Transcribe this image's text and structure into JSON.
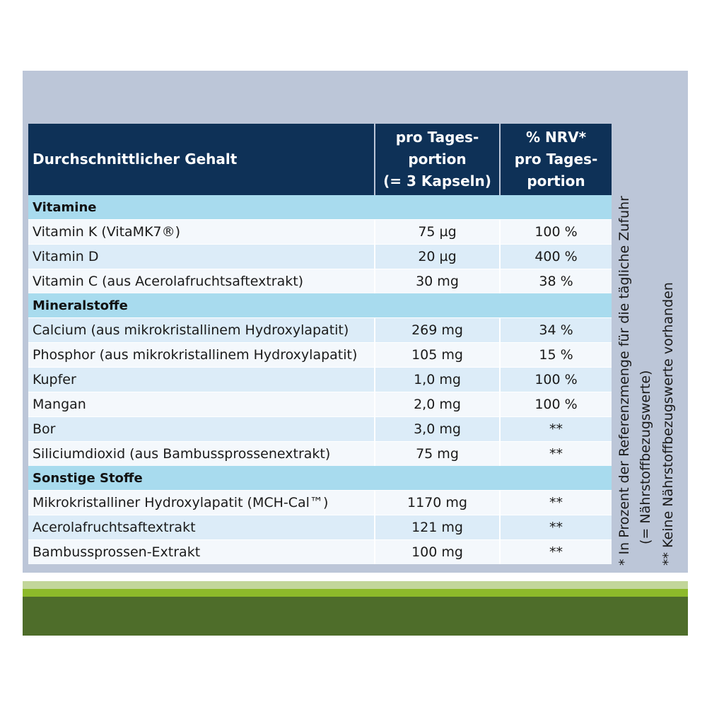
{
  "header": {
    "col1": "Durchschnittlicher Gehalt",
    "col2": [
      "pro Tages-",
      "portion",
      "(= 3 Kapseln)"
    ],
    "col3": [
      "% NRV*",
      "pro Tages-",
      "portion"
    ]
  },
  "sections": [
    {
      "title": "Vitamine",
      "rows": [
        {
          "name": "Vitamin K (VitaMK7®)",
          "amount": "75 µg",
          "nrv": "100 %"
        },
        {
          "name": "Vitamin D",
          "amount": "20 µg",
          "nrv": "400 %"
        },
        {
          "name": "Vitamin C (aus Acerolafruchtsaftextrakt)",
          "amount": "30 mg",
          "nrv": "38 %"
        }
      ]
    },
    {
      "title": "Mineralstoffe",
      "rows": [
        {
          "name": "Calcium (aus mikrokristallinem Hydroxylapatit)",
          "amount": "269 mg",
          "nrv": "34 %"
        },
        {
          "name": "Phosphor (aus mikrokristallinem Hydroxylapatit)",
          "amount": "105 mg",
          "nrv": "15 %"
        },
        {
          "name": "Kupfer",
          "amount": "1,0 mg",
          "nrv": "100 %"
        },
        {
          "name": "Mangan",
          "amount": "2,0 mg",
          "nrv": "100 %"
        },
        {
          "name": "Bor",
          "amount": "3,0 mg",
          "nrv": "**"
        },
        {
          "name": "Siliciumdioxid (aus Bambussprossenextrakt)",
          "amount": "75 mg",
          "nrv": "**"
        }
      ]
    },
    {
      "title": "Sonstige Stoffe",
      "rows": [
        {
          "name": "Mikrokristalliner Hydroxylapatit (MCH-Cal™)",
          "amount": "1170 mg",
          "nrv": "**"
        },
        {
          "name": "Acerolafruchtsaftextrakt",
          "amount": "121 mg",
          "nrv": "**"
        },
        {
          "name": "Bambussprossen-Extrakt",
          "amount": "100 mg",
          "nrv": "**"
        }
      ]
    }
  ],
  "footnotes": {
    "note1": [
      "* In Prozent der Referenzmenge für die tägliche Zufuhr",
      "(= Nährstoffbezugswerte)"
    ],
    "note2": "** Keine Nährstoffbezugswerte vorhanden"
  },
  "colors": {
    "header_bg": "#0e3157",
    "section_bg": "#a8dbee",
    "panel_bg": "#bcc6d8",
    "bar_light": "#c2d69a",
    "bar_mid": "#8dba2a",
    "bar_dark": "#4e6d2a"
  }
}
